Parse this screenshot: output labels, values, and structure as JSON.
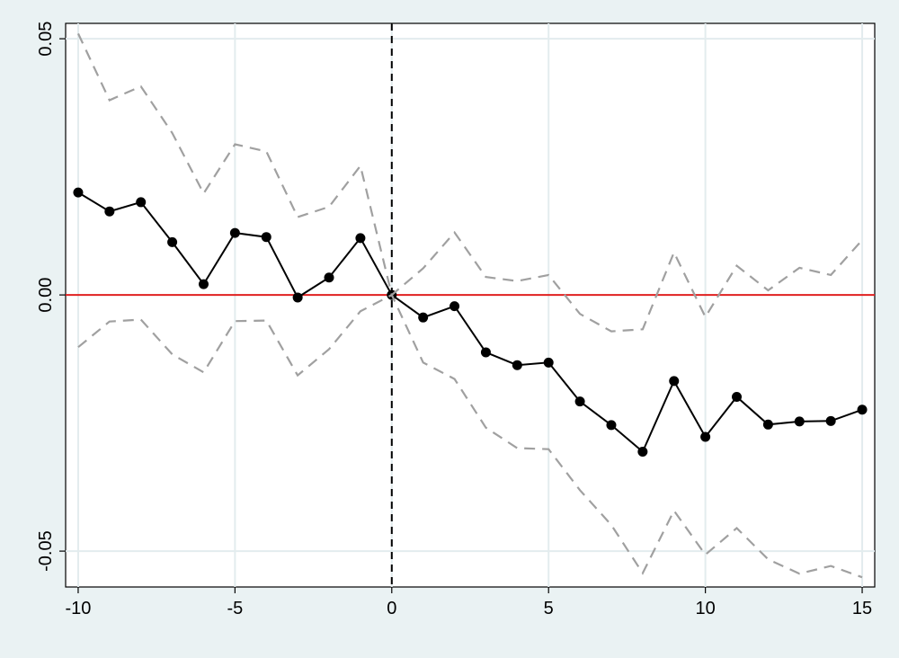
{
  "chart_data": {
    "type": "line",
    "title": "",
    "xlabel": "",
    "ylabel": "",
    "xlim": [
      -10.4,
      15.4
    ],
    "ylim": [
      -0.057,
      0.053
    ],
    "x_ticks": [
      -10,
      -5,
      0,
      5,
      10,
      15
    ],
    "x_tick_labels": [
      "-10",
      "-5",
      "0",
      "5",
      "10",
      "15"
    ],
    "y_ticks": [
      -0.05,
      0.0,
      0.05
    ],
    "y_tick_labels": [
      "-0.05",
      "0.00",
      "0.05"
    ],
    "grid": "vertical",
    "reference_lines": [
      {
        "axis": "y",
        "value": 0.0,
        "color": "#e02020",
        "style": "solid"
      },
      {
        "axis": "x",
        "value": 0,
        "color": "#000000",
        "style": "dashed"
      }
    ],
    "x": [
      -10,
      -9,
      -8,
      -7,
      -6,
      -5,
      -4,
      -3,
      -2,
      -1,
      0,
      1,
      2,
      3,
      4,
      5,
      6,
      7,
      8,
      9,
      10,
      11,
      12,
      13,
      14,
      15
    ],
    "series": [
      {
        "role": "estimate",
        "color": "#000000",
        "style": "solid-with-markers",
        "values": [
          0.02,
          0.0163,
          0.0181,
          0.0103,
          0.0021,
          0.0121,
          0.0113,
          -0.0005,
          0.0034,
          0.0111,
          0.0,
          -0.0044,
          -0.0022,
          -0.0112,
          -0.0137,
          -0.0132,
          -0.0208,
          -0.0254,
          -0.0306,
          -0.0168,
          -0.0277,
          -0.0199,
          -0.0253,
          -0.0247,
          -0.0246,
          -0.0224
        ]
      },
      {
        "role": "upper-bound",
        "color": "#a0a0a0",
        "style": "dashed",
        "values": [
          0.051,
          0.038,
          0.0407,
          0.0316,
          0.0198,
          0.0294,
          0.028,
          0.0152,
          0.0172,
          0.0252,
          0.0,
          0.0052,
          0.0122,
          0.0035,
          0.0027,
          0.0039,
          -0.0037,
          -0.0071,
          -0.0067,
          0.0083,
          -0.0043,
          0.0057,
          0.0009,
          0.0053,
          0.0039,
          0.0107
        ]
      },
      {
        "role": "lower-bound",
        "color": "#a0a0a0",
        "style": "dashed",
        "values": [
          -0.0102,
          -0.0052,
          -0.0048,
          -0.0116,
          -0.0151,
          -0.0051,
          -0.005,
          -0.0157,
          -0.0106,
          -0.0032,
          0.0,
          -0.0132,
          -0.0164,
          -0.0259,
          -0.0299,
          -0.0301,
          -0.0381,
          -0.0449,
          -0.0543,
          -0.0421,
          -0.0507,
          -0.0455,
          -0.0516,
          -0.0544,
          -0.0529,
          -0.0551
        ]
      }
    ]
  }
}
